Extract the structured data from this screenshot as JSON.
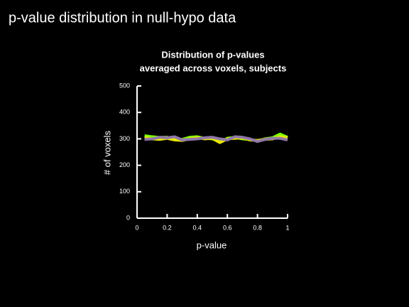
{
  "slide_title": "p-value distribution in null-hypo data",
  "chart_data": {
    "type": "line",
    "title": [
      "Distribution of p-values",
      "averaged across voxels, subjects"
    ],
    "x_label": "p-value",
    "y_label": "# of voxels",
    "x": [
      0.05,
      0.1,
      0.15,
      0.2,
      0.25,
      0.3,
      0.35,
      0.4,
      0.45,
      0.5,
      0.55,
      0.6,
      0.65,
      0.7,
      0.75,
      0.8,
      0.85,
      0.9,
      0.95,
      1.0
    ],
    "series": [
      {
        "color": "#80ff00",
        "values": [
          312,
          308,
          305,
          306,
          300,
          298,
          306,
          308,
          302,
          300,
          290,
          302,
          306,
          300,
          298,
          292,
          300,
          304,
          318,
          306
        ]
      },
      {
        "color": "#e8e800",
        "values": [
          305,
          300,
          298,
          302,
          296,
          294,
          300,
          304,
          300,
          302,
          286,
          300,
          302,
          304,
          296,
          294,
          298,
          300,
          308,
          304
        ]
      },
      {
        "color": "#9078a8",
        "values": [
          298,
          300,
          306,
          304,
          308,
          296,
          298,
          300,
          304,
          306,
          300,
          296,
          308,
          306,
          300,
          290,
          298,
          302,
          302,
          296
        ]
      }
    ],
    "xlim": [
      0,
      1
    ],
    "xticks": [
      0,
      0.2,
      0.4,
      0.6,
      0.8,
      1
    ],
    "ylim": [
      0,
      500
    ],
    "yticks": [
      0,
      100,
      200,
      300,
      400,
      500
    ],
    "background": "#000000"
  }
}
